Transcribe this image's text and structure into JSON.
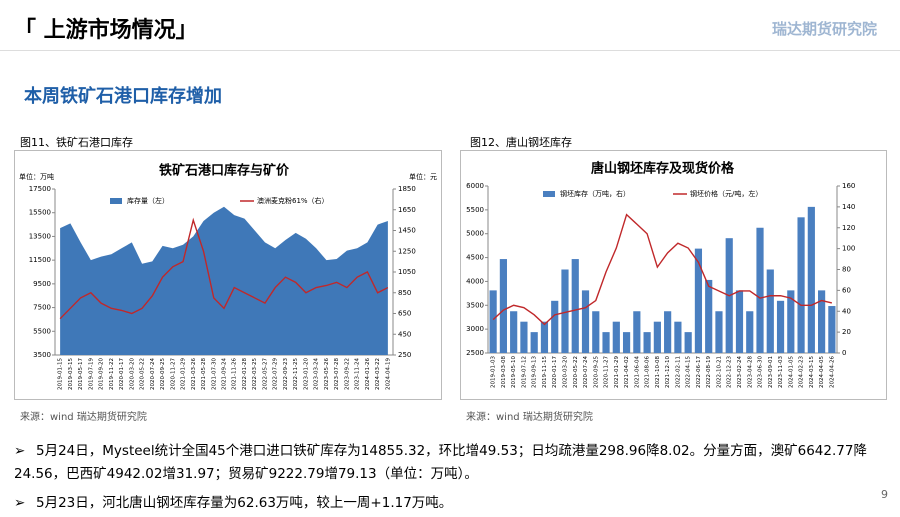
{
  "header": {
    "title": "「 上游市场情况」",
    "logo": "瑞达期货研究院"
  },
  "subtitle": "本周铁矿石港口库存增加",
  "figures": [
    {
      "caption": "图11、铁矿石港口库存",
      "source": "来源：wind  瑞达期货研究院"
    },
    {
      "caption": "图12、唐山钢坯库存",
      "source": "来源：wind  瑞达期货研究院"
    }
  ],
  "bullets": [
    "5月24日，Mysteel统计全国45个港口进口铁矿库存为14855.32，环比增49.53；日均疏港量298.96降8.02。分量方面，澳矿6642.77降24.56，巴西矿4942.02增31.97；贸易矿9222.79增79.13（单位：万吨）。",
    "5月23日，河北唐山钢坯库存量为62.63万吨，较上一周+1.17万吨。"
  ],
  "page_number": "9",
  "chart_data": [
    {
      "type": "combo",
      "title": "铁矿石港口库存与矿价",
      "y_unit": "单位：万吨",
      "y2_unit": "单位：元",
      "categories": [
        "2019-01-15",
        "2019-03-15",
        "2019-05-17",
        "2019-07-19",
        "2019-09-20",
        "2019-11-22",
        "2020-01-17",
        "2020-03-20",
        "2020-05-22",
        "2020-07-24",
        "2020-09-25",
        "2020-11-27",
        "2021-01-29",
        "2021-03-26",
        "2021-05-28",
        "2021-07-30",
        "2021-09-24",
        "2021-11-26",
        "2022-01-28",
        "2022-03-25",
        "2022-05-27",
        "2022-07-29",
        "2022-09-23",
        "2022-11-25",
        "2023-01-20",
        "2023-03-24",
        "2023-05-26",
        "2023-07-28",
        "2023-09-22",
        "2023-11-24",
        "2024-01-26",
        "2024-03-22",
        "2024-04-19"
      ],
      "series": [
        {
          "name": "库存量（左）",
          "kind": "area",
          "color": "#3f78b8",
          "values": [
            14200,
            14600,
            13000,
            11500,
            11800,
            12000,
            12500,
            13000,
            11200,
            11400,
            12700,
            12500,
            12800,
            13500,
            14800,
            15500,
            16000,
            15300,
            15000,
            14000,
            13000,
            12500,
            13200,
            13800,
            13300,
            12500,
            11500,
            11600,
            12300,
            12500,
            13000,
            14500,
            14800
          ]
        },
        {
          "name": "澳洲麦克粉61%（右）",
          "kind": "line",
          "axis": "y2",
          "color": "#c0282a",
          "values": [
            600,
            700,
            800,
            850,
            750,
            700,
            680,
            650,
            700,
            820,
            1000,
            1100,
            1150,
            1550,
            1250,
            800,
            700,
            900,
            850,
            800,
            750,
            900,
            1000,
            950,
            850,
            900,
            920,
            950,
            900,
            1000,
            1050,
            850,
            900
          ]
        }
      ],
      "ylim": [
        3500,
        17500
      ],
      "yticks": [
        3500,
        5500,
        7500,
        9500,
        11500,
        13500,
        15500,
        17500
      ],
      "y2lim": [
        250,
        1850
      ],
      "y2ticks": [
        250,
        450,
        650,
        850,
        1050,
        1250,
        1450,
        1650,
        1850
      ]
    },
    {
      "type": "combo",
      "title": "唐山钢坯库存及现货价格",
      "categories": [
        "2019-01-03",
        "2019-03-08",
        "2019-05-10",
        "2019-07-12",
        "2019-09-13",
        "2019-11-15",
        "2020-01-17",
        "2020-03-20",
        "2020-05-22",
        "2020-07-24",
        "2020-09-25",
        "2020-11-27",
        "2021-01-29",
        "2021-04-02",
        "2021-06-04",
        "2021-08-06",
        "2021-10-08",
        "2021-12-10",
        "2022-02-11",
        "2022-04-15",
        "2022-06-17",
        "2022-08-19",
        "2022-10-21",
        "2022-12-23",
        "2023-02-24",
        "2023-04-28",
        "2023-06-30",
        "2023-09-01",
        "2023-11-03",
        "2024-01-05",
        "2024-02-23",
        "2024-03-15",
        "2024-04-05",
        "2024-04-26"
      ],
      "series": [
        {
          "name": "钢坯库存（万吨，右）",
          "kind": "bar",
          "axis": "y2",
          "color": "#4a7fc0",
          "values": [
            60,
            90,
            40,
            30,
            20,
            30,
            50,
            80,
            90,
            60,
            40,
            20,
            30,
            20,
            40,
            20,
            30,
            40,
            30,
            20,
            100,
            70,
            40,
            110,
            60,
            40,
            120,
            80,
            50,
            60,
            130,
            140,
            60,
            45
          ]
        },
        {
          "name": "钢坯价格（元/吨，左）",
          "kind": "line",
          "color": "#c0282a",
          "values": [
            3200,
            3400,
            3500,
            3450,
            3300,
            3100,
            3300,
            3350,
            3400,
            3450,
            3600,
            4200,
            4700,
            5400,
            5200,
            5000,
            4300,
            4600,
            4800,
            4700,
            4400,
            3900,
            3800,
            3700,
            3800,
            3800,
            3650,
            3700,
            3700,
            3650,
            3500,
            3500,
            3600,
            3550
          ]
        }
      ],
      "ylim": [
        2500,
        6000
      ],
      "yticks": [
        2500,
        3000,
        3500,
        4000,
        4500,
        5000,
        5500,
        6000
      ],
      "y2lim": [
        0,
        160
      ],
      "y2ticks": [
        0,
        20,
        40,
        60,
        80,
        100,
        120,
        140,
        160
      ]
    }
  ]
}
